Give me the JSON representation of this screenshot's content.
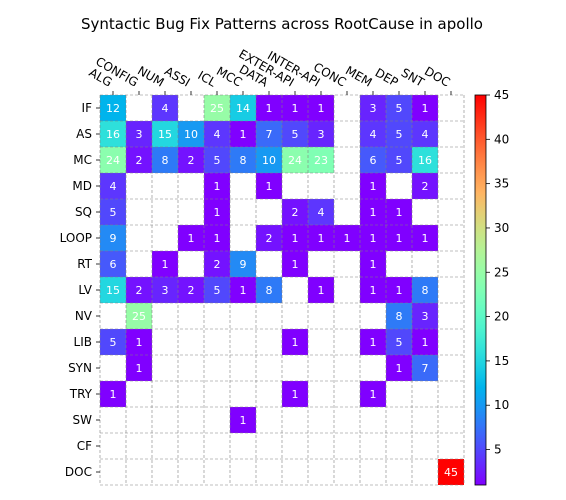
{
  "chart_data": {
    "type": "heatmap",
    "title": "Syntactic Bug Fix Patterns across RootCause in apollo",
    "x_categories": [
      "ALG",
      "CONFIG",
      "NUM",
      "ASSI",
      "ICL",
      "MCC",
      "DATA",
      "EXTER-API",
      "INTER-API",
      "CONC",
      "MEM",
      "DEP",
      "SNT",
      "DOC"
    ],
    "y_categories": [
      "IF",
      "AS",
      "MC",
      "MD",
      "SQ",
      "LOOP",
      "RT",
      "LV",
      "NV",
      "LIB",
      "SYN",
      "TRY",
      "SW",
      "CF",
      "DOC"
    ],
    "values": [
      [
        12,
        null,
        4,
        null,
        25,
        14,
        1,
        1,
        1,
        null,
        3,
        5,
        1,
        null
      ],
      [
        16,
        3,
        15,
        10,
        4,
        1,
        7,
        5,
        3,
        null,
        4,
        5,
        4,
        null
      ],
      [
        24,
        2,
        8,
        2,
        5,
        8,
        10,
        24,
        23,
        null,
        6,
        5,
        16,
        null
      ],
      [
        4,
        null,
        null,
        null,
        1,
        null,
        1,
        null,
        null,
        null,
        1,
        null,
        2,
        null
      ],
      [
        5,
        null,
        null,
        null,
        1,
        null,
        null,
        2,
        4,
        null,
        1,
        1,
        null,
        null
      ],
      [
        9,
        null,
        null,
        1,
        1,
        null,
        2,
        1,
        1,
        1,
        1,
        1,
        1,
        null
      ],
      [
        6,
        null,
        1,
        null,
        2,
        9,
        null,
        1,
        null,
        null,
        1,
        null,
        null,
        null
      ],
      [
        15,
        2,
        3,
        2,
        5,
        1,
        8,
        null,
        1,
        null,
        1,
        1,
        8,
        null
      ],
      [
        null,
        25,
        null,
        null,
        null,
        null,
        null,
        null,
        null,
        null,
        null,
        8,
        3,
        null
      ],
      [
        5,
        1,
        null,
        null,
        null,
        null,
        null,
        1,
        null,
        null,
        1,
        5,
        1,
        null
      ],
      [
        null,
        1,
        null,
        null,
        null,
        null,
        null,
        null,
        null,
        null,
        null,
        1,
        7,
        null
      ],
      [
        1,
        null,
        null,
        null,
        null,
        null,
        null,
        1,
        null,
        null,
        1,
        null,
        null,
        null
      ],
      [
        null,
        null,
        null,
        null,
        null,
        1,
        null,
        null,
        null,
        null,
        null,
        null,
        null,
        null
      ],
      [
        null,
        null,
        null,
        null,
        null,
        null,
        null,
        null,
        null,
        null,
        null,
        null,
        null,
        null
      ],
      [
        null,
        null,
        null,
        null,
        null,
        null,
        null,
        null,
        null,
        null,
        null,
        null,
        null,
        45
      ]
    ],
    "colormap": "rainbow",
    "vmin": 1,
    "vmax": 45,
    "colorbar_ticks": [
      5,
      10,
      15,
      20,
      25,
      30,
      35,
      40,
      45
    ],
    "grid": true,
    "x_tick_position": "top"
  }
}
